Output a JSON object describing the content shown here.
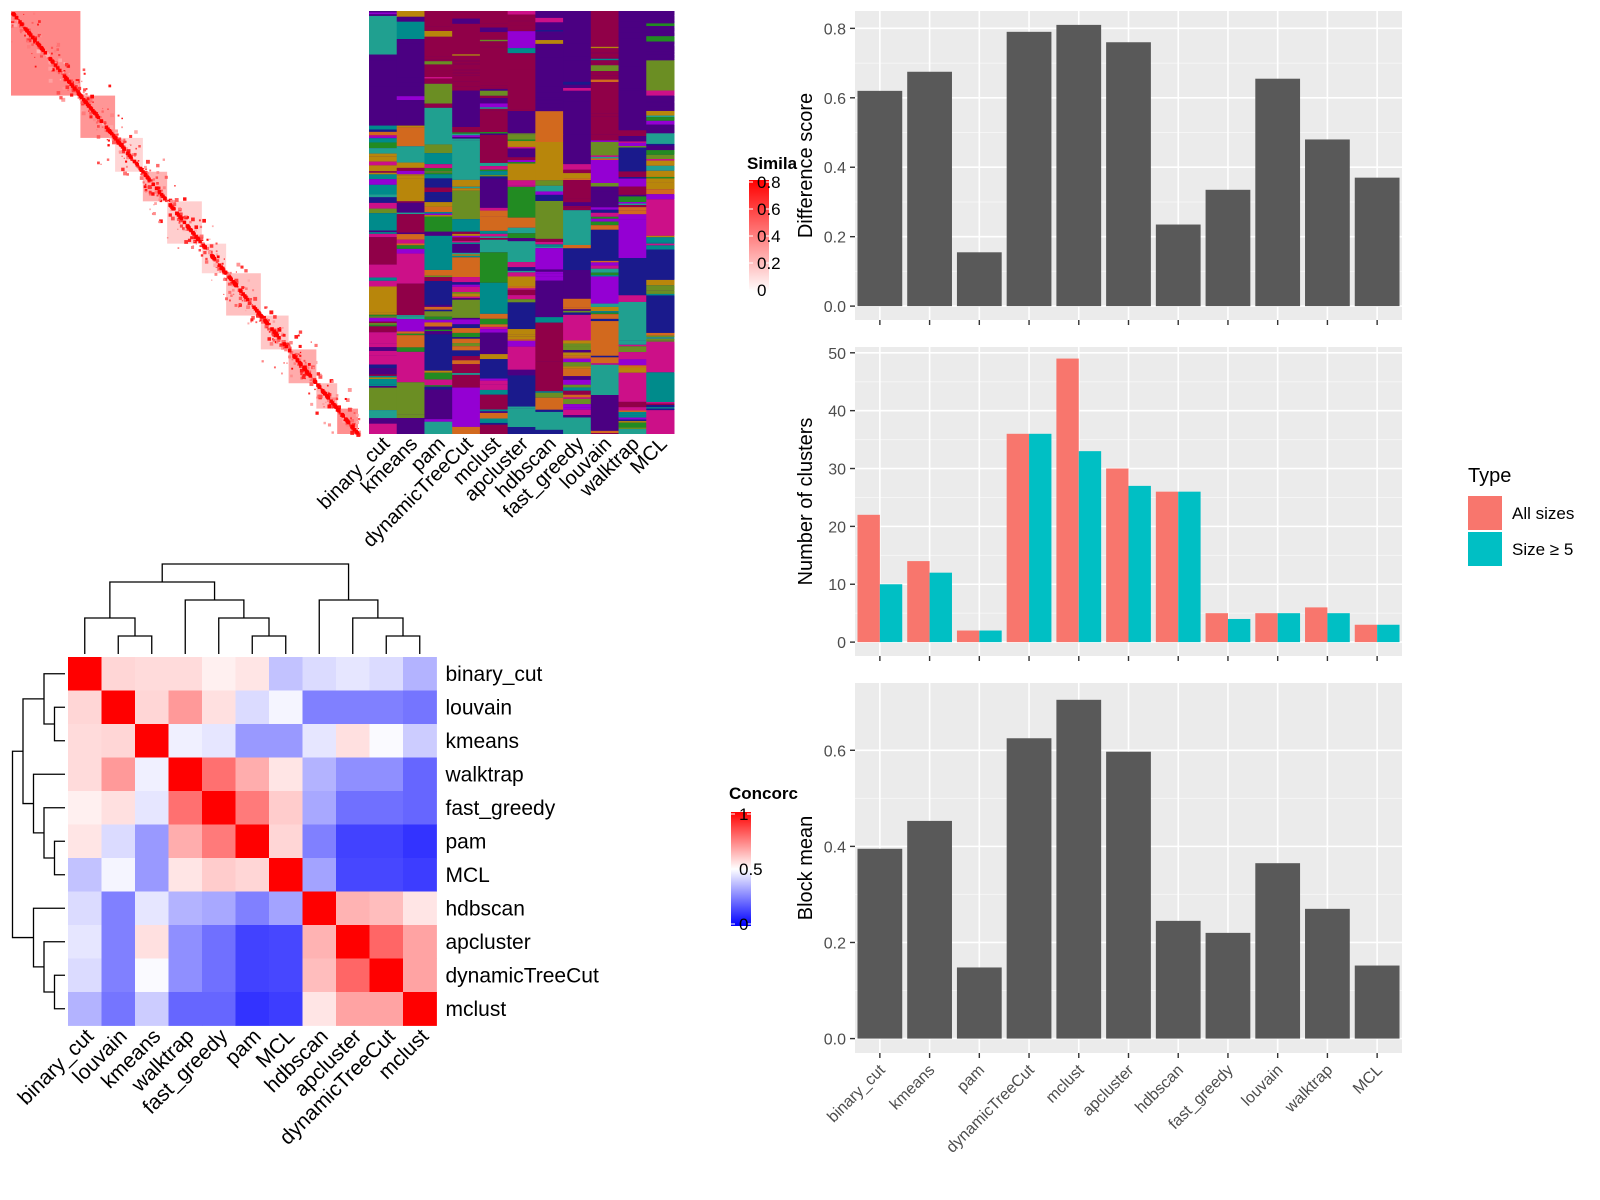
{
  "colors": {
    "sim_high": "#ff0000",
    "sim_low": "#ffffff",
    "conc_high": "#ff0000",
    "conc_mid": "#ffffff",
    "conc_low": "#0000ff",
    "bar_gray": "#595959",
    "panel_bg": "#ebebeb",
    "grid_major": "#ffffff",
    "all_sizes": "#f8766d",
    "size_ge5": "#00bfc4"
  },
  "similarity_legend": {
    "title": "Simila",
    "ticks": [
      "0.8",
      "0.6",
      "0.4",
      "0.2",
      "0"
    ],
    "tick_values": [
      0.8,
      0.6,
      0.4,
      0.2,
      0
    ]
  },
  "concordance_legend": {
    "title": "Concorc",
    "ticks": [
      "1",
      "0.5",
      "0"
    ],
    "tick_values": [
      1,
      0.5,
      0
    ]
  },
  "partition_heatmap": {
    "methods": [
      "binary_cut",
      "kmeans",
      "pam",
      "dynamicTreeCut",
      "mclust",
      "apcluster",
      "hdbscan",
      "fast_greedy",
      "louvain",
      "walktrap",
      "MCL"
    ]
  },
  "concordance_heatmap": {
    "order": [
      "binary_cut",
      "louvain",
      "kmeans",
      "walktrap",
      "fast_greedy",
      "pam",
      "MCL",
      "hdbscan",
      "apcluster",
      "dynamicTreeCut",
      "mclust"
    ],
    "matrix": [
      [
        1.0,
        0.58,
        0.57,
        0.57,
        0.53,
        0.55,
        0.38,
        0.43,
        0.45,
        0.43,
        0.35
      ],
      [
        0.58,
        1.0,
        0.58,
        0.7,
        0.56,
        0.43,
        0.48,
        0.25,
        0.25,
        0.25,
        0.23
      ],
      [
        0.57,
        0.58,
        1.0,
        0.47,
        0.45,
        0.3,
        0.3,
        0.45,
        0.56,
        0.49,
        0.4
      ],
      [
        0.57,
        0.7,
        0.47,
        1.0,
        0.78,
        0.66,
        0.55,
        0.35,
        0.28,
        0.28,
        0.2
      ],
      [
        0.53,
        0.56,
        0.45,
        0.78,
        1.0,
        0.76,
        0.6,
        0.33,
        0.22,
        0.22,
        0.2
      ],
      [
        0.55,
        0.43,
        0.3,
        0.66,
        0.76,
        1.0,
        0.58,
        0.25,
        0.13,
        0.13,
        0.1
      ],
      [
        0.38,
        0.48,
        0.3,
        0.55,
        0.6,
        0.58,
        1.0,
        0.32,
        0.14,
        0.14,
        0.12
      ],
      [
        0.43,
        0.25,
        0.45,
        0.35,
        0.33,
        0.25,
        0.32,
        1.0,
        0.65,
        0.63,
        0.55
      ],
      [
        0.45,
        0.25,
        0.56,
        0.28,
        0.22,
        0.13,
        0.14,
        0.65,
        1.0,
        0.8,
        0.68
      ],
      [
        0.43,
        0.25,
        0.49,
        0.28,
        0.22,
        0.13,
        0.14,
        0.63,
        0.8,
        1.0,
        0.68
      ],
      [
        0.35,
        0.23,
        0.4,
        0.2,
        0.2,
        0.1,
        0.12,
        0.55,
        0.68,
        0.68,
        1.0
      ]
    ]
  },
  "bar_categories": [
    "binary_cut",
    "kmeans",
    "pam",
    "dynamicTreeCut",
    "mclust",
    "apcluster",
    "hdbscan",
    "fast_greedy",
    "louvain",
    "walktrap",
    "MCL"
  ],
  "chart_data": [
    {
      "type": "bar",
      "categories": [
        "binary_cut",
        "kmeans",
        "pam",
        "dynamicTreeCut",
        "mclust",
        "apcluster",
        "hdbscan",
        "fast_greedy",
        "louvain",
        "walktrap",
        "MCL"
      ],
      "values": [
        0.62,
        0.675,
        0.155,
        0.79,
        0.81,
        0.76,
        0.235,
        0.335,
        0.655,
        0.48,
        0.37
      ],
      "ylabel": "Difference score",
      "ylim": [
        -0.04,
        0.85
      ],
      "yticks": [
        0.0,
        0.2,
        0.4,
        0.6,
        0.8
      ],
      "ytick_labels": [
        "0.0",
        "0.2",
        "0.4",
        "0.6",
        "0.8"
      ]
    },
    {
      "type": "bar",
      "categories": [
        "binary_cut",
        "kmeans",
        "pam",
        "dynamicTreeCut",
        "mclust",
        "apcluster",
        "hdbscan",
        "fast_greedy",
        "louvain",
        "walktrap",
        "MCL"
      ],
      "series": [
        {
          "name": "All sizes",
          "values": [
            22,
            14,
            2,
            36,
            49,
            30,
            26,
            5,
            5,
            6,
            3
          ]
        },
        {
          "name": "Size ≥ 5",
          "values": [
            10,
            12,
            2,
            36,
            33,
            27,
            26,
            4,
            5,
            5,
            3
          ]
        }
      ],
      "ylabel": "Number of clusters",
      "ylim": [
        -2.4,
        51
      ],
      "yticks": [
        0,
        10,
        20,
        30,
        40,
        50
      ],
      "ytick_labels": [
        "0",
        "10",
        "20",
        "30",
        "40",
        "50"
      ],
      "legend": {
        "title": "Type",
        "position": "right"
      }
    },
    {
      "type": "bar",
      "categories": [
        "binary_cut",
        "kmeans",
        "pam",
        "dynamicTreeCut",
        "mclust",
        "apcluster",
        "hdbscan",
        "fast_greedy",
        "louvain",
        "walktrap",
        "MCL"
      ],
      "values": [
        0.395,
        0.453,
        0.148,
        0.625,
        0.705,
        0.597,
        0.245,
        0.22,
        0.365,
        0.27,
        0.152
      ],
      "ylabel": "Block mean",
      "ylim": [
        -0.03,
        0.74
      ],
      "yticks": [
        0.0,
        0.2,
        0.4,
        0.6
      ],
      "ytick_labels": [
        "0.0",
        "0.2",
        "0.4",
        "0.6"
      ]
    }
  ]
}
